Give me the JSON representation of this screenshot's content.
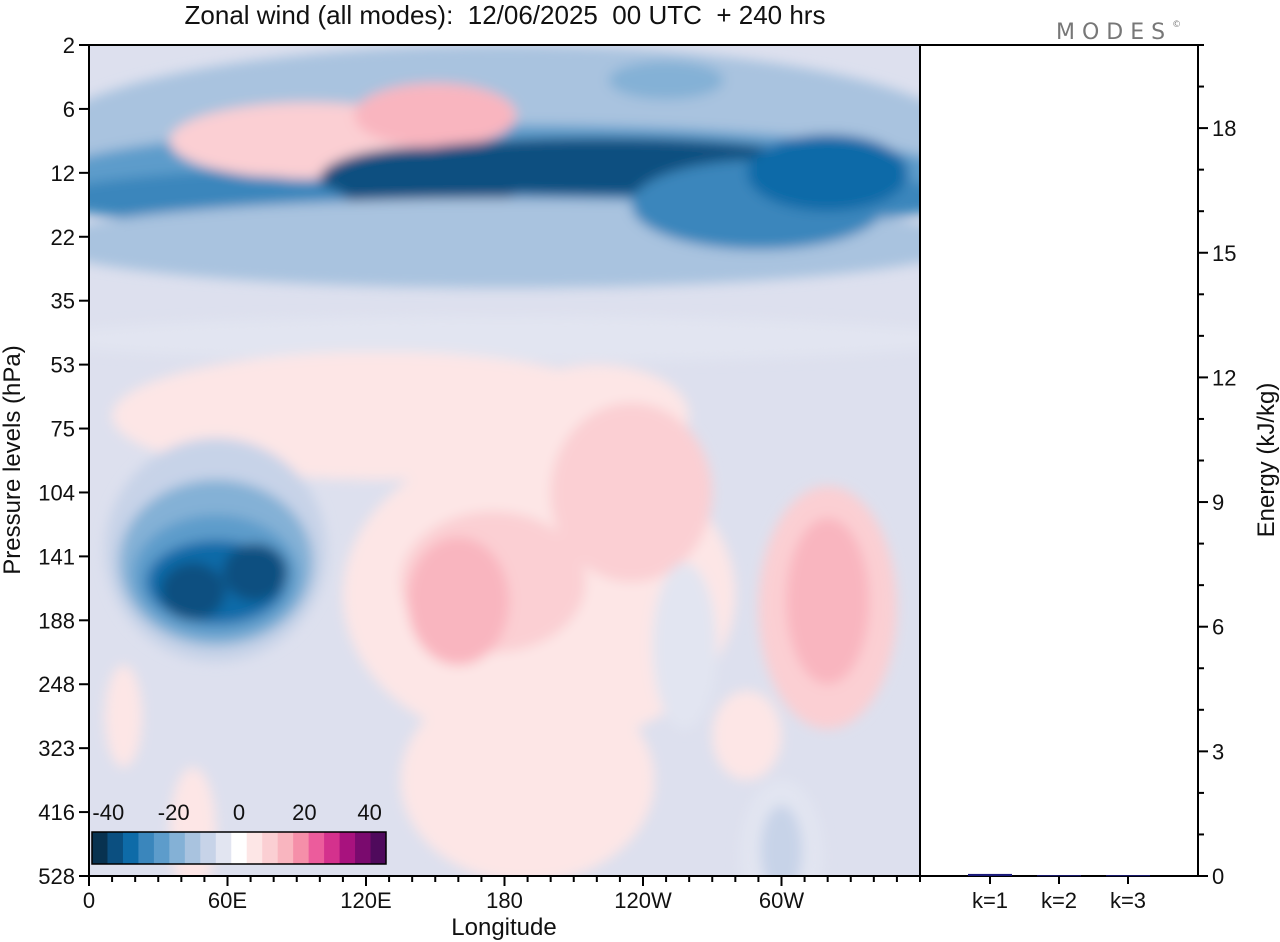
{
  "title": "Zonal wind (all modes):  12/06/2025  00 UTC  + 240 hrs",
  "logo": {
    "text": "MODES",
    "mark": "©"
  },
  "chart_data": [
    {
      "type": "heatmap",
      "xlabel": "Longitude",
      "ylabel": "Pressure levels (hPa)",
      "x_ticks": [
        {
          "label": "0",
          "lon": 0
        },
        {
          "label": "60E",
          "lon": 60
        },
        {
          "label": "120E",
          "lon": 120
        },
        {
          "label": "180",
          "lon": 180
        },
        {
          "label": "120W",
          "lon": 240
        },
        {
          "label": "60W",
          "lon": 300
        }
      ],
      "xlim": [
        0,
        360
      ],
      "y_levels": [
        "2",
        "6",
        "12",
        "22",
        "35",
        "53",
        "75",
        "104",
        "141",
        "188",
        "248",
        "323",
        "416",
        "528"
      ],
      "colorbar": {
        "tick_labels": [
          "-40",
          "-20",
          "0",
          "20",
          "40"
        ],
        "range": [
          -45,
          45
        ],
        "colors": [
          "#083250",
          "#0b4f80",
          "#0e6ba8",
          "#3a86bc",
          "#5d9ccb",
          "#84b1d6",
          "#a9c3df",
          "#c7d3e8",
          "#e2e5f1",
          "#ffffff",
          "#fde6e6",
          "#fbcfd3",
          "#f9b5bf",
          "#f58fa9",
          "#ec5c9c",
          "#d4318d",
          "#a8127e",
          "#7a0a6e",
          "#4f0a5c"
        ]
      },
      "grid": false,
      "description_of_field": "Upper band of strong easterlies (about -30 to -40) near 10-25 hPa spanning all longitudes; weak westerlies (+5 to +15) aloft near 2 hPa at 60E-180; easterly core (-30 to -35) near 130-150 hPa at 30E-100E; weak westerlies (+10 to +15) near 104-190 hPa at 150E-150W and 70W-60W."
    },
    {
      "type": "bar",
      "categories": [
        "k=1",
        "k=2",
        "k=3"
      ],
      "values": [
        0.05,
        0.02,
        0.02
      ],
      "ylabel": "Energy (kJ/kg)",
      "ylim": [
        0,
        20
      ],
      "y_ticks": [
        "0",
        "3",
        "6",
        "9",
        "12",
        "15",
        "18"
      ]
    }
  ]
}
